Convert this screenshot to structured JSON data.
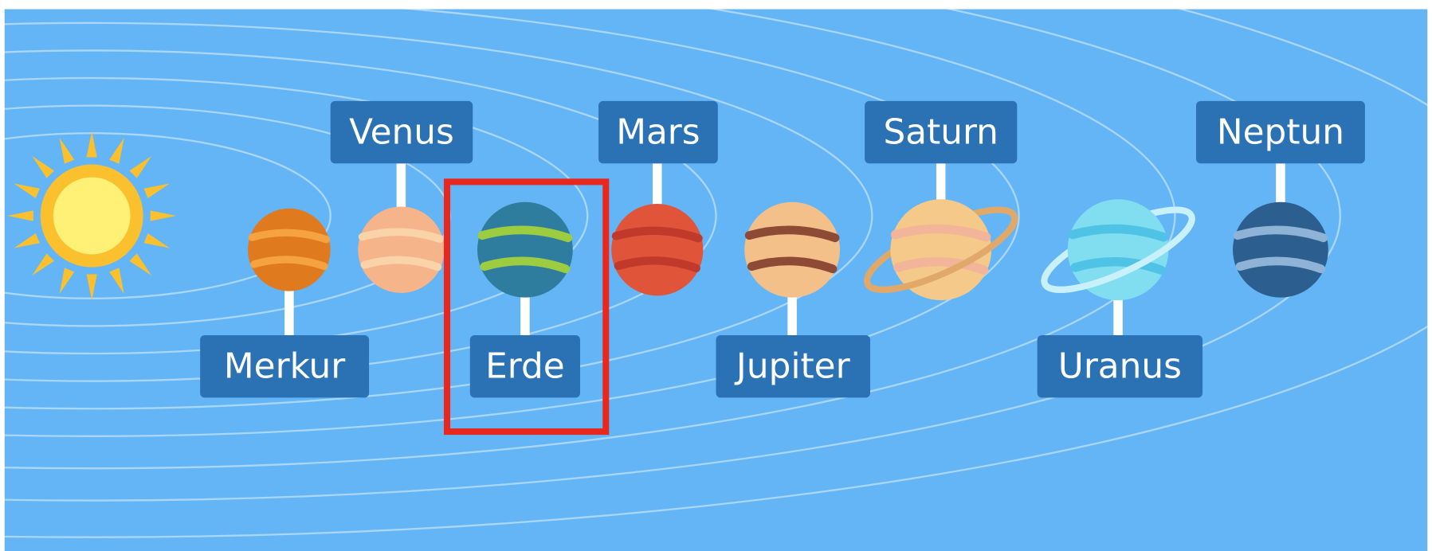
{
  "planets": [
    {
      "name": "Merkur"
    },
    {
      "name": "Venus"
    },
    {
      "name": "Erde"
    },
    {
      "name": "Mars"
    },
    {
      "name": "Jupiter"
    },
    {
      "name": "Saturn"
    },
    {
      "name": "Uranus"
    },
    {
      "name": "Neptun"
    }
  ]
}
